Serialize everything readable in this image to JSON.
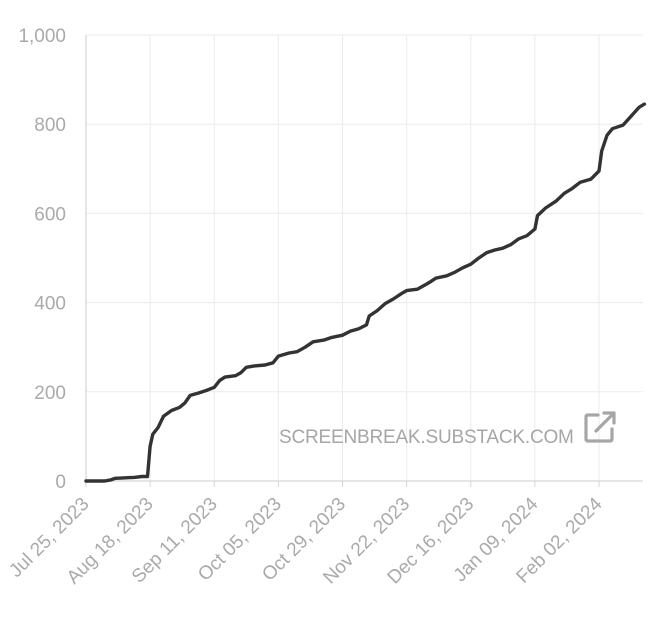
{
  "chart_data": {
    "type": "line",
    "title": "",
    "xlabel": "",
    "ylabel": "",
    "ylim": [
      0,
      1000
    ],
    "xlim": [
      "2023-07-25",
      "2024-02-19"
    ],
    "y_ticks": [
      0,
      200,
      400,
      600,
      800,
      1000
    ],
    "y_tick_labels": [
      "0",
      "200",
      "400",
      "600",
      "800",
      "1,000"
    ],
    "x_ticks": [
      "2023-07-25",
      "2023-08-18",
      "2023-09-11",
      "2023-10-05",
      "2023-10-29",
      "2023-11-22",
      "2023-12-16",
      "2024-01-09",
      "2024-02-02"
    ],
    "x_tick_labels": [
      "Jul 25, 2023",
      "Aug 18, 2023",
      "Sep 11, 2023",
      "Oct 05, 2023",
      "Oct 29, 2023",
      "Nov 22, 2023",
      "Dec 16, 2023",
      "Jan 09, 2024",
      "Feb 02, 2024"
    ],
    "grid": true,
    "line_color": "#333333",
    "series": [
      {
        "points": [
          [
            "2023-07-25",
            0
          ],
          [
            "2023-08-01",
            0
          ],
          [
            "2023-08-03",
            2
          ],
          [
            "2023-08-05",
            6
          ],
          [
            "2023-08-08",
            7
          ],
          [
            "2023-08-12",
            8
          ],
          [
            "2023-08-15",
            10
          ],
          [
            "2023-08-17",
            10
          ],
          [
            "2023-08-18",
            78
          ],
          [
            "2023-08-19",
            105
          ],
          [
            "2023-08-21",
            120
          ],
          [
            "2023-08-23",
            145
          ],
          [
            "2023-08-26",
            158
          ],
          [
            "2023-08-29",
            165
          ],
          [
            "2023-08-31",
            175
          ],
          [
            "2023-09-02",
            192
          ],
          [
            "2023-09-05",
            197
          ],
          [
            "2023-09-08",
            203
          ],
          [
            "2023-09-11",
            210
          ],
          [
            "2023-09-13",
            225
          ],
          [
            "2023-09-15",
            233
          ],
          [
            "2023-09-19",
            236
          ],
          [
            "2023-09-21",
            243
          ],
          [
            "2023-09-23",
            255
          ],
          [
            "2023-09-26",
            258
          ],
          [
            "2023-09-30",
            260
          ],
          [
            "2023-10-03",
            265
          ],
          [
            "2023-10-05",
            280
          ],
          [
            "2023-10-09",
            287
          ],
          [
            "2023-10-12",
            290
          ],
          [
            "2023-10-15",
            300
          ],
          [
            "2023-10-18",
            312
          ],
          [
            "2023-10-22",
            316
          ],
          [
            "2023-10-25",
            322
          ],
          [
            "2023-10-29",
            327
          ],
          [
            "2023-11-01",
            336
          ],
          [
            "2023-11-04",
            341
          ],
          [
            "2023-11-07",
            350
          ],
          [
            "2023-11-08",
            370
          ],
          [
            "2023-11-11",
            382
          ],
          [
            "2023-11-14",
            398
          ],
          [
            "2023-11-17",
            408
          ],
          [
            "2023-11-20",
            420
          ],
          [
            "2023-11-22",
            427
          ],
          [
            "2023-11-26",
            430
          ],
          [
            "2023-11-29",
            440
          ],
          [
            "2023-12-01",
            447
          ],
          [
            "2023-12-03",
            455
          ],
          [
            "2023-12-07",
            460
          ],
          [
            "2023-12-10",
            468
          ],
          [
            "2023-12-13",
            478
          ],
          [
            "2023-12-16",
            486
          ],
          [
            "2023-12-19",
            500
          ],
          [
            "2023-12-22",
            512
          ],
          [
            "2023-12-25",
            518
          ],
          [
            "2023-12-28",
            522
          ],
          [
            "2023-12-31",
            530
          ],
          [
            "2024-01-03",
            543
          ],
          [
            "2024-01-06",
            550
          ],
          [
            "2024-01-09",
            565
          ],
          [
            "2024-01-10",
            595
          ],
          [
            "2024-01-13",
            612
          ],
          [
            "2024-01-17",
            628
          ],
          [
            "2024-01-20",
            645
          ],
          [
            "2024-01-23",
            656
          ],
          [
            "2024-01-26",
            670
          ],
          [
            "2024-01-30",
            677
          ],
          [
            "2024-02-02",
            695
          ],
          [
            "2024-02-03",
            740
          ],
          [
            "2024-02-05",
            775
          ],
          [
            "2024-02-07",
            790
          ],
          [
            "2024-02-11",
            798
          ],
          [
            "2024-02-14",
            818
          ],
          [
            "2024-02-17",
            838
          ],
          [
            "2024-02-19",
            845
          ]
        ]
      }
    ]
  },
  "watermark": {
    "text": "SCREENBREAK.SUBSTACK.COM",
    "icon": "external-link-icon"
  }
}
